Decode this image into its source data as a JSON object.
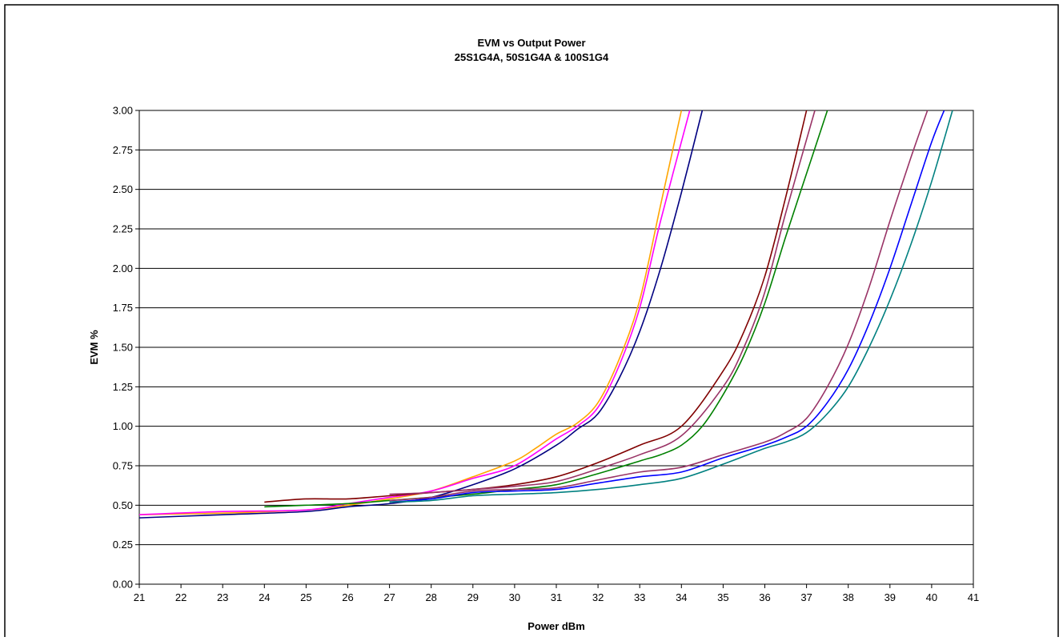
{
  "chart_data": {
    "type": "line",
    "title": "EVM vs Output Power",
    "subtitle": "25S1G4A, 50S1G4A & 100S1G4",
    "xlabel": "Power dBm",
    "ylabel": "EVM %",
    "xlim": [
      21,
      41
    ],
    "ylim": [
      0,
      3
    ],
    "x_ticks": [
      21,
      22,
      23,
      24,
      25,
      26,
      27,
      28,
      29,
      30,
      31,
      32,
      33,
      34,
      35,
      36,
      37,
      38,
      39,
      40,
      41
    ],
    "y_ticks": [
      "0.00",
      "0.25",
      "0.50",
      "0.75",
      "1.00",
      "1.25",
      "1.50",
      "1.75",
      "2.00",
      "2.25",
      "2.50",
      "2.75",
      "3.00"
    ],
    "grid": "horizontal",
    "legend": "none",
    "series": [
      {
        "color": "#FFA500",
        "x": [
          21,
          23,
          25,
          26,
          27,
          28,
          29,
          30,
          30.5,
          31,
          31.5,
          32,
          32.5,
          33,
          33.5,
          34
        ],
        "y": [
          0.44,
          0.45,
          0.47,
          0.5,
          0.54,
          0.59,
          0.68,
          0.78,
          0.86,
          0.95,
          1.02,
          1.15,
          1.42,
          1.8,
          2.4,
          3.0
        ]
      },
      {
        "color": "#FF00FF",
        "x": [
          21,
          23,
          25,
          26,
          27,
          28,
          29,
          30,
          31,
          31.5,
          32,
          32.5,
          33,
          33.5,
          34.2
        ],
        "y": [
          0.44,
          0.46,
          0.47,
          0.51,
          0.55,
          0.59,
          0.67,
          0.75,
          0.92,
          1.0,
          1.12,
          1.38,
          1.75,
          2.3,
          3.0
        ]
      },
      {
        "color": "#000080",
        "x": [
          21,
          23,
          25,
          26,
          27,
          28,
          29,
          30,
          31,
          31.5,
          32,
          32.5,
          33,
          33.5,
          34,
          34.5
        ],
        "y": [
          0.42,
          0.44,
          0.46,
          0.49,
          0.51,
          0.55,
          0.63,
          0.73,
          0.88,
          0.98,
          1.08,
          1.3,
          1.6,
          2.0,
          2.48,
          3.0
        ]
      },
      {
        "color": "#800000",
        "x": [
          24,
          25,
          26,
          27,
          28,
          29,
          30,
          31,
          32,
          33,
          34,
          35,
          35.5,
          36,
          36.5,
          37
        ],
        "y": [
          0.52,
          0.54,
          0.54,
          0.56,
          0.58,
          0.6,
          0.63,
          0.68,
          0.77,
          0.88,
          1.0,
          1.35,
          1.6,
          1.95,
          2.45,
          3.0
        ]
      },
      {
        "color": "#993366",
        "x": [
          27,
          28,
          29,
          30,
          31,
          32,
          33,
          34,
          35,
          35.5,
          36,
          36.5,
          37.2
        ],
        "y": [
          0.57,
          0.58,
          0.6,
          0.62,
          0.65,
          0.73,
          0.82,
          0.94,
          1.25,
          1.5,
          1.85,
          2.35,
          3.0
        ]
      },
      {
        "color": "#008000",
        "x": [
          24,
          25,
          26,
          27,
          28,
          29,
          30,
          31,
          32,
          33,
          33.5,
          34,
          34.5,
          35,
          35.5,
          36,
          36.5,
          37,
          37.5
        ],
        "y": [
          0.49,
          0.5,
          0.51,
          0.53,
          0.55,
          0.57,
          0.6,
          0.63,
          0.7,
          0.78,
          0.82,
          0.88,
          1.0,
          1.2,
          1.45,
          1.78,
          2.2,
          2.6,
          3.0
        ]
      },
      {
        "color": "#993366",
        "x": [
          27,
          28,
          29,
          30,
          31,
          32,
          33,
          34,
          35,
          36,
          36.5,
          37,
          37.5,
          38,
          38.5,
          39,
          39.5,
          39.9
        ],
        "y": [
          0.53,
          0.55,
          0.59,
          0.6,
          0.61,
          0.66,
          0.71,
          0.74,
          0.82,
          0.9,
          0.96,
          1.05,
          1.25,
          1.52,
          1.88,
          2.3,
          2.7,
          3.0
        ]
      },
      {
        "color": "#0000FF",
        "x": [
          27,
          28,
          29,
          30,
          31,
          32,
          33,
          34,
          35,
          36,
          36.5,
          37,
          37.5,
          38,
          38.5,
          39,
          39.5,
          40,
          40.3
        ],
        "y": [
          0.52,
          0.54,
          0.58,
          0.59,
          0.6,
          0.64,
          0.68,
          0.71,
          0.8,
          0.88,
          0.93,
          1.0,
          1.15,
          1.36,
          1.65,
          2.0,
          2.4,
          2.8,
          3.0
        ]
      },
      {
        "color": "#008080",
        "x": [
          27,
          28,
          29,
          30,
          31,
          32,
          33,
          34,
          35,
          36,
          36.5,
          37,
          37.5,
          38,
          38.5,
          39,
          39.5,
          40,
          40.5
        ],
        "y": [
          0.52,
          0.53,
          0.56,
          0.57,
          0.58,
          0.6,
          0.63,
          0.67,
          0.76,
          0.86,
          0.9,
          0.96,
          1.08,
          1.25,
          1.5,
          1.8,
          2.15,
          2.55,
          3.0
        ]
      }
    ]
  }
}
